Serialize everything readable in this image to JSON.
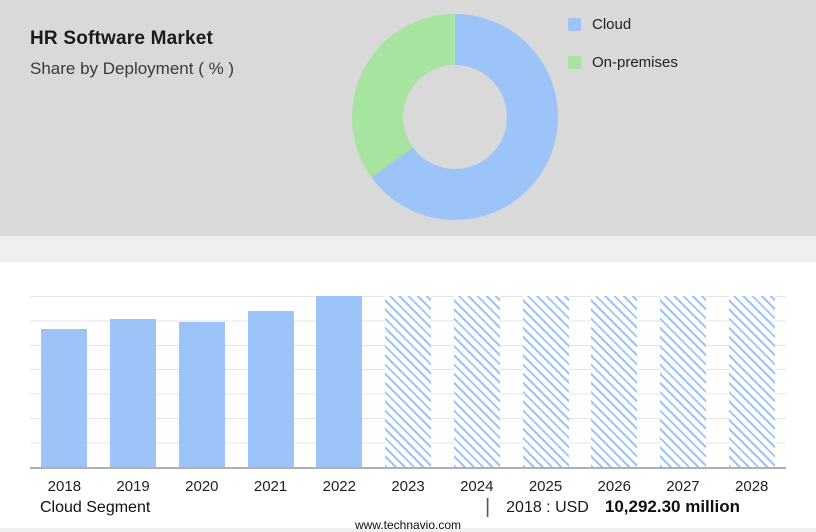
{
  "colors": {
    "cloud_blue": "#9DC4F8",
    "onprem_green": "#A6E4A0",
    "panel_gray": "#D9D9D9"
  },
  "header": {
    "title": "HR Software Market",
    "subtitle": "Share by Deployment ( % )"
  },
  "legend": [
    {
      "label": "Cloud",
      "color": "#9DC4F8"
    },
    {
      "label": "On-premises",
      "color": "#A6E4A0"
    }
  ],
  "chart_data": [
    {
      "type": "pie",
      "title": "Share by Deployment ( % )",
      "labels": [
        "Cloud",
        "On-premises"
      ],
      "values": [
        65,
        35
      ],
      "colors": [
        "#9DC4F8",
        "#A6E4A0"
      ],
      "donut": true,
      "legend_position": "top-right"
    },
    {
      "type": "bar",
      "title": "Cloud Segment (USD million)",
      "categories": [
        "2018",
        "2019",
        "2020",
        "2021",
        "2022",
        "2023",
        "2024",
        "2025",
        "2026",
        "2027",
        "2028"
      ],
      "values": [
        10292.3,
        11050,
        10850,
        11650,
        12790,
        12790,
        12790,
        12790,
        12790,
        12790,
        12790
      ],
      "ylim": [
        0,
        12790
      ],
      "grid": true,
      "hatched_from_index": 5,
      "bar_color": "#9DC4F8"
    }
  ],
  "footer": {
    "segment_label": "Cloud Segment",
    "divider": "|",
    "value_prefix": "2018 : USD",
    "value_bold": "10,292.30 million",
    "website": "www.technavio.com"
  }
}
